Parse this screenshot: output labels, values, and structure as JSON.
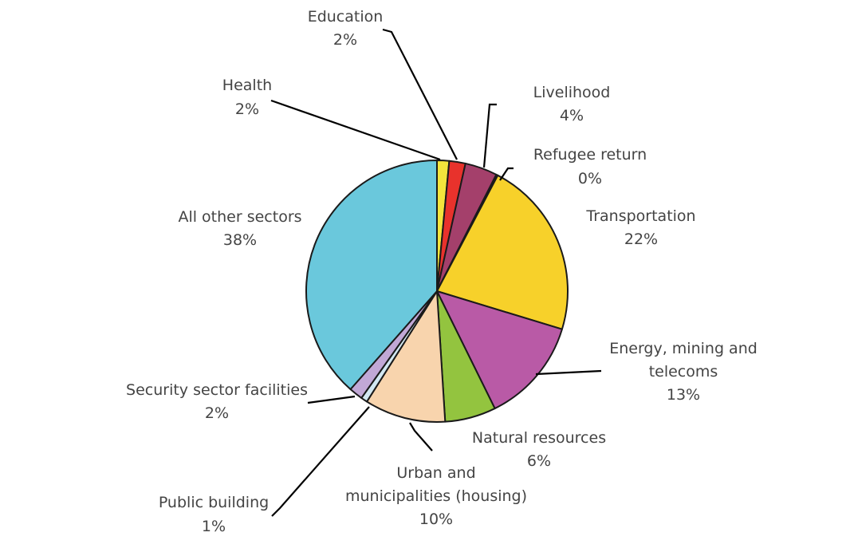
{
  "chart_data": {
    "type": "pie",
    "title": "",
    "start_angle_deg": 0,
    "direction": "clockwise",
    "slices": [
      {
        "key": "health",
        "name": "Health",
        "pct_label": "2%",
        "value": 1.5,
        "color": "#f3e43c"
      },
      {
        "key": "education",
        "name": "Education",
        "pct_label": "2%",
        "value": 2.0,
        "color": "#e8322c"
      },
      {
        "key": "livelihood",
        "name": "Livelihood",
        "pct_label": "4%",
        "value": 4.0,
        "color": "#a4406b"
      },
      {
        "key": "refugee",
        "name": "Refugee return",
        "pct_label": "0%",
        "value": 0.2,
        "color": "#d9d9d9"
      },
      {
        "key": "transport",
        "name": "Transportation",
        "pct_label": "22%",
        "value": 22.0,
        "color": "#f7d12a"
      },
      {
        "key": "energy",
        "name": "Energy, mining and telecoms",
        "name_lines": [
          "Energy, mining and",
          "telecoms"
        ],
        "pct_label": "13%",
        "value": 13.0,
        "color": "#b95aa6"
      },
      {
        "key": "natural",
        "name": "Natural resources",
        "pct_label": "6%",
        "value": 6.3,
        "color": "#93c43f"
      },
      {
        "key": "urban",
        "name": "Urban and municipalities (housing)",
        "name_lines": [
          "Urban and",
          "municipalities (housing)"
        ],
        "pct_label": "10%",
        "value": 10.0,
        "color": "#f8d4ad"
      },
      {
        "key": "public",
        "name": "Public building",
        "pct_label": "1%",
        "value": 0.8,
        "color": "#d2e8f2"
      },
      {
        "key": "security",
        "name": "Security sector facilities",
        "pct_label": "2%",
        "value": 1.7,
        "color": "#c1a8d6"
      },
      {
        "key": "other",
        "name": "All other sectors",
        "pct_label": "38%",
        "value": 38.5,
        "color": "#6ac8dc"
      }
    ]
  }
}
